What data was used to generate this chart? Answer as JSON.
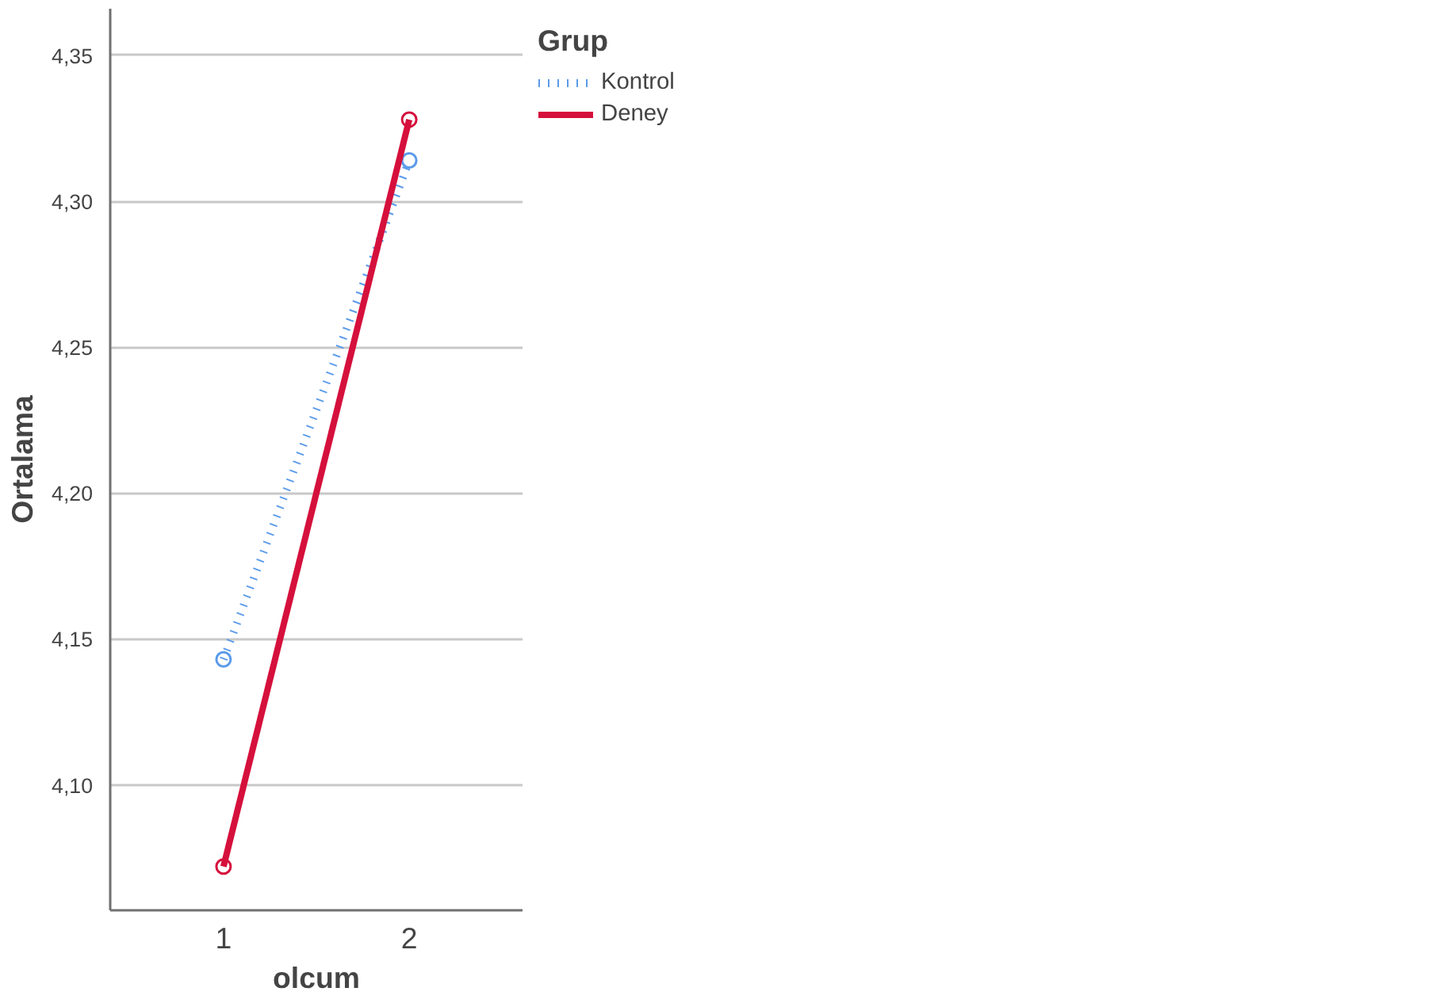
{
  "chart_data": {
    "type": "line",
    "xlabel": "olcum",
    "ylabel": "Ortalama",
    "legend_title": "Grup",
    "categories": [
      "1",
      "2"
    ],
    "series": [
      {
        "name": "Kontrol",
        "color": "#5b9bea",
        "line_style": "dotted",
        "values": [
          4.143,
          4.314
        ]
      },
      {
        "name": "Deney",
        "color": "#d5103c",
        "line_style": "solid",
        "values": [
          4.072,
          4.328
        ]
      }
    ],
    "ylim": [
      4.057,
      4.366
    ],
    "yticks": [
      {
        "value": 4.1,
        "label": "4,10"
      },
      {
        "value": 4.15,
        "label": "4,15"
      },
      {
        "value": 4.2,
        "label": "4,20"
      },
      {
        "value": 4.25,
        "label": "4,25"
      },
      {
        "value": 4.3,
        "label": "4,30"
      },
      {
        "value": 4.35,
        "label": "4,35"
      }
    ],
    "grid": "y",
    "legend": "top right",
    "marker": "circle"
  }
}
